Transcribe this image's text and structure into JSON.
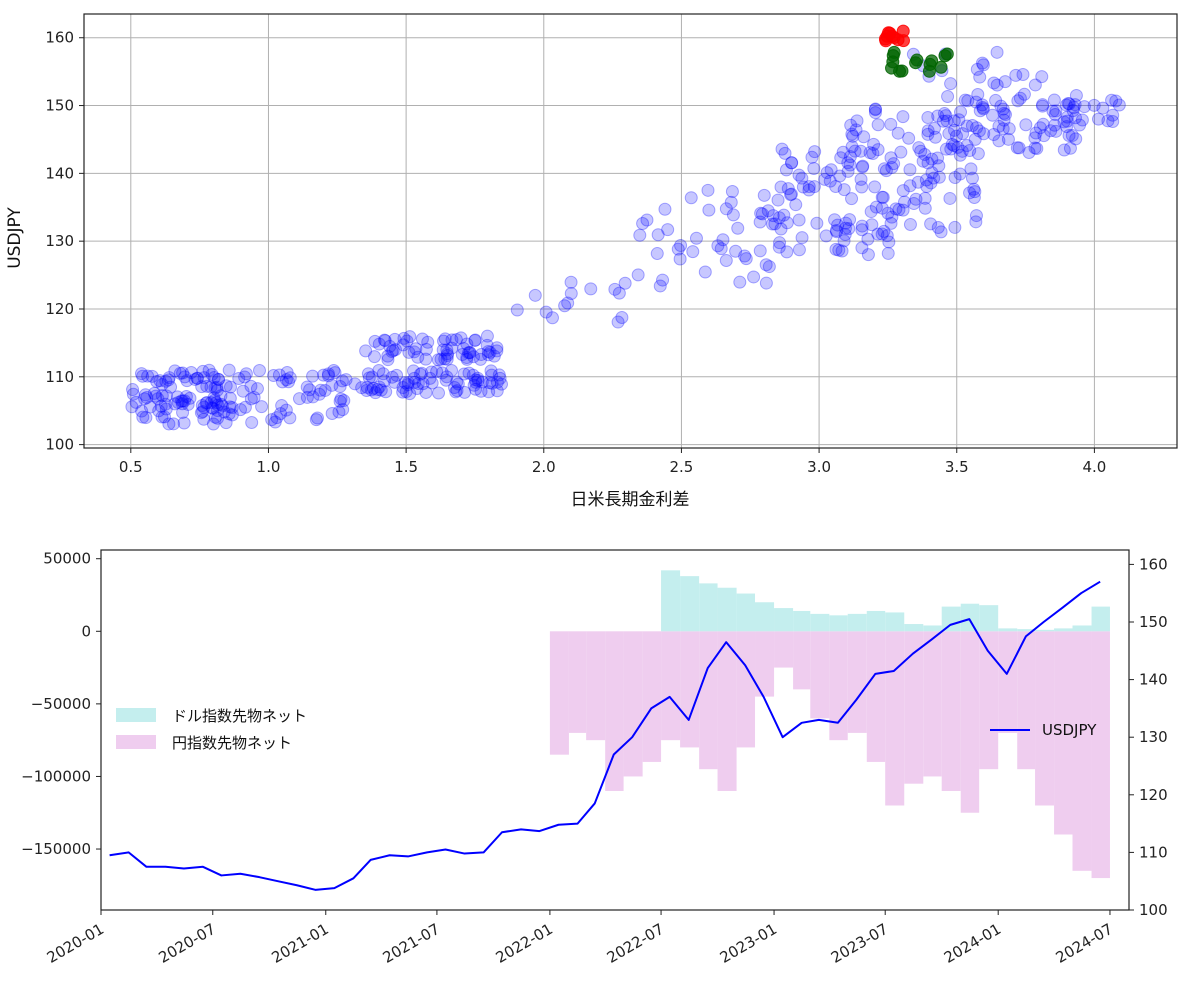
{
  "chart_data": [
    {
      "type": "scatter",
      "xlabel": "日米長期金利差",
      "ylabel": "USDJPY",
      "xlim": [
        0.33,
        4.3
      ],
      "ylim": [
        99.5,
        163.5
      ],
      "xticks": [
        "0.5",
        "1.0",
        "1.5",
        "2.0",
        "2.5",
        "3.0",
        "3.5",
        "4.0"
      ],
      "yticks": [
        "100",
        "110",
        "120",
        "130",
        "140",
        "150",
        "160"
      ],
      "grid": true,
      "colors": {
        "main": "#0000ff",
        "recent": "#006400",
        "latest": "#ff0000"
      },
      "clusters": [
        {
          "group": "main",
          "x_range": [
            0.5,
            0.95
          ],
          "y_range": [
            103,
            111
          ],
          "n": 110
        },
        {
          "group": "main",
          "x_range": [
            0.95,
            1.35
          ],
          "y_range": [
            103,
            111
          ],
          "n": 45
        },
        {
          "group": "main",
          "x_range": [
            1.35,
            1.85
          ],
          "y_range": [
            107.5,
            111
          ],
          "n": 70
        },
        {
          "group": "main",
          "x_range": [
            1.35,
            1.85
          ],
          "y_range": [
            112.5,
            116
          ],
          "n": 60
        },
        {
          "group": "main",
          "x_range": [
            1.9,
            2.3
          ],
          "y_range": [
            118,
            124
          ],
          "n": 14
        },
        {
          "group": "main",
          "x_range": [
            2.3,
            2.85
          ],
          "y_range": [
            123,
            138
          ],
          "n": 45
        },
        {
          "group": "main",
          "x_range": [
            2.85,
            3.3
          ],
          "y_range": [
            128,
            145
          ],
          "n": 80
        },
        {
          "group": "main",
          "x_range": [
            3.1,
            3.6
          ],
          "y_range": [
            131,
            150
          ],
          "n": 90
        },
        {
          "group": "main",
          "x_range": [
            3.45,
            3.95
          ],
          "y_range": [
            143,
            152
          ],
          "n": 70
        },
        {
          "group": "main",
          "x_range": [
            3.3,
            3.85
          ],
          "y_range": [
            153,
            158
          ],
          "n": 18
        },
        {
          "group": "main",
          "x_range": [
            3.8,
            4.12
          ],
          "y_range": [
            147,
            151
          ],
          "n": 20
        },
        {
          "group": "recent",
          "x_range": [
            3.26,
            3.48
          ],
          "y_range": [
            155,
            158
          ],
          "n": 14
        },
        {
          "group": "latest",
          "x_range": [
            3.23,
            3.32
          ],
          "y_range": [
            159.5,
            161
          ],
          "n": 10
        }
      ]
    },
    {
      "type": "bar+line",
      "x_ticks": [
        "2020-01",
        "2020-07",
        "2021-01",
        "2021-07",
        "2022-01",
        "2022-07",
        "2023-01",
        "2023-07",
        "2024-01",
        "2024-07"
      ],
      "x_range": [
        "2020-01-01",
        "2024-08-01"
      ],
      "y_left_lim": [
        -192000,
        56000
      ],
      "y_left_ticks": [
        "50000",
        "0",
        "−50000",
        "−100000",
        "−150000"
      ],
      "y_right_lim": [
        100,
        162.5
      ],
      "y_right_ticks": [
        "100",
        "110",
        "120",
        "130",
        "140",
        "150",
        "160"
      ],
      "series": [
        {
          "name": "ドル指数先物ネット",
          "type": "bar",
          "color": "#c4eeee",
          "x": [
            "2022-07",
            "2022-08",
            "2022-09",
            "2022-10",
            "2022-11",
            "2022-12",
            "2023-01",
            "2023-02",
            "2023-03",
            "2023-04",
            "2023-05",
            "2023-06",
            "2023-07",
            "2023-08",
            "2023-09",
            "2023-10",
            "2023-11",
            "2023-12",
            "2024-01",
            "2024-02",
            "2024-03",
            "2024-04",
            "2024-05",
            "2024-06"
          ],
          "values": [
            42000,
            38000,
            33000,
            30000,
            26000,
            20000,
            16000,
            14000,
            12000,
            11000,
            12000,
            14000,
            13000,
            5000,
            4000,
            17000,
            19000,
            18000,
            2000,
            1500,
            1000,
            2000,
            4000,
            17000
          ]
        },
        {
          "name": "円指数先物ネット",
          "type": "bar",
          "color": "#efcdef",
          "x": [
            "2022-01",
            "2022-02",
            "2022-03",
            "2022-04",
            "2022-05",
            "2022-06",
            "2022-07",
            "2022-08",
            "2022-09",
            "2022-10",
            "2022-11",
            "2022-12",
            "2023-01",
            "2023-02",
            "2023-03",
            "2023-04",
            "2023-05",
            "2023-06",
            "2023-07",
            "2023-08",
            "2023-09",
            "2023-10",
            "2023-11",
            "2023-12",
            "2024-01",
            "2024-02",
            "2024-03",
            "2024-04",
            "2024-05",
            "2024-06"
          ],
          "values": [
            -85000,
            -70000,
            -75000,
            -110000,
            -100000,
            -90000,
            -75000,
            -80000,
            -95000,
            -110000,
            -80000,
            -45000,
            -25000,
            -40000,
            -60000,
            -75000,
            -70000,
            -90000,
            -120000,
            -105000,
            -100000,
            -110000,
            -125000,
            -95000,
            -70000,
            -95000,
            -120000,
            -140000,
            -165000,
            -170000
          ]
        },
        {
          "name": "USDJPY",
          "type": "line",
          "axis": "right",
          "color": "#0000ff",
          "x": [
            "2020-01",
            "2020-02",
            "2020-03",
            "2020-04",
            "2020-05",
            "2020-06",
            "2020-07",
            "2020-08",
            "2020-09",
            "2020-10",
            "2020-11",
            "2020-12",
            "2021-01",
            "2021-02",
            "2021-03",
            "2021-04",
            "2021-05",
            "2021-06",
            "2021-07",
            "2021-08",
            "2021-09",
            "2021-10",
            "2021-11",
            "2021-12",
            "2022-01",
            "2022-02",
            "2022-03",
            "2022-04",
            "2022-05",
            "2022-06",
            "2022-07",
            "2022-08",
            "2022-09",
            "2022-10",
            "2022-11",
            "2022-12",
            "2023-01",
            "2023-02",
            "2023-03",
            "2023-04",
            "2023-05",
            "2023-06",
            "2023-07",
            "2023-08",
            "2023-09",
            "2023-10",
            "2023-11",
            "2023-12",
            "2024-01",
            "2024-02",
            "2024-03",
            "2024-04",
            "2024-05",
            "2024-06"
          ],
          "values": [
            109.5,
            110.0,
            107.5,
            107.5,
            107.2,
            107.5,
            106.0,
            106.3,
            105.7,
            105.0,
            104.3,
            103.5,
            103.8,
            105.5,
            108.7,
            109.5,
            109.3,
            110.0,
            110.5,
            109.8,
            110.0,
            113.5,
            114.0,
            113.7,
            114.8,
            115.0,
            118.5,
            127.0,
            130.0,
            135.0,
            137.0,
            133.0,
            142.0,
            146.5,
            142.5,
            137.0,
            130.0,
            132.5,
            133.0,
            132.5,
            136.5,
            141.0,
            141.5,
            144.5,
            147.0,
            149.5,
            150.5,
            145.0,
            141.0,
            147.5,
            150.0,
            152.5,
            155.0,
            157.0
          ]
        }
      ],
      "legend_left_position": "center-left",
      "legend_right_position": "center-right"
    }
  ]
}
